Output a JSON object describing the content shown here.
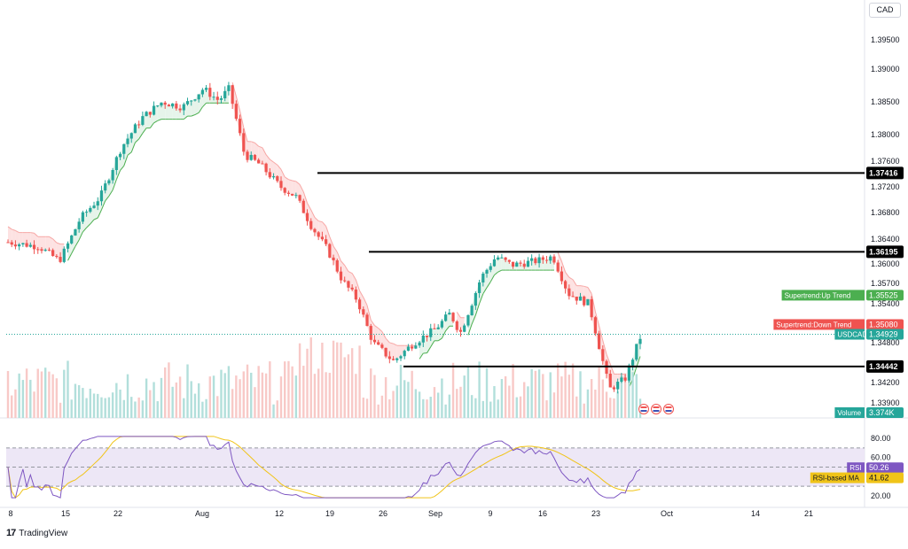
{
  "header": {
    "currency": "CAD"
  },
  "footer": {
    "brand": "TradingView",
    "brand_icon": "tradingview-logo-icon"
  },
  "colors": {
    "up": "#26a69a",
    "down": "#ef5350",
    "st_up_fill": "#e6f4ea",
    "st_down_fill": "#fde2e2",
    "st_up_line": "#4caf50",
    "st_down_line": "#f7a7a5",
    "rsi_line": "#7e57c2",
    "rsi_ma": "#f0c419",
    "rsi_band": "#ede7f6"
  },
  "chart_data": [
    {
      "type": "candlestick",
      "symbol_label": "USDCAD",
      "last_price": "1.34929",
      "y_ticks": [
        "1.39500",
        "1.39000",
        "1.38500",
        "1.38000",
        "1.37600",
        "1.37200",
        "1.36800",
        "1.36400",
        "1.36000",
        "1.35700",
        "1.35400",
        "1.34800",
        "1.34200",
        "1.33900"
      ],
      "x_ticks": [
        "8",
        "15",
        "22",
        "Aug",
        "12",
        "19",
        "26",
        "Sep",
        "9",
        "16",
        "23",
        "Oct",
        "14",
        "21"
      ],
      "price_markers": [
        "1.37416",
        "1.36195",
        "1.34442"
      ],
      "indicators": [
        {
          "name": "Supertrend:Up Trend",
          "value": "1.35525"
        },
        {
          "name": "Supertrend:Down Trend",
          "value": "1.35080"
        },
        {
          "name": "USDCAD",
          "value": "1.34929"
        },
        {
          "name": "Volume",
          "value": "3.374K"
        }
      ],
      "events_icon": "us-flag-event-icon"
    },
    {
      "type": "line",
      "y_ticks": [
        "80.00",
        "60.00",
        "20.00"
      ],
      "levels": [
        70,
        50,
        30
      ],
      "series_labels": [
        {
          "name": "RSI",
          "value": "50.26"
        },
        {
          "name": "RSI-based MA",
          "value": "41.62"
        }
      ]
    }
  ]
}
